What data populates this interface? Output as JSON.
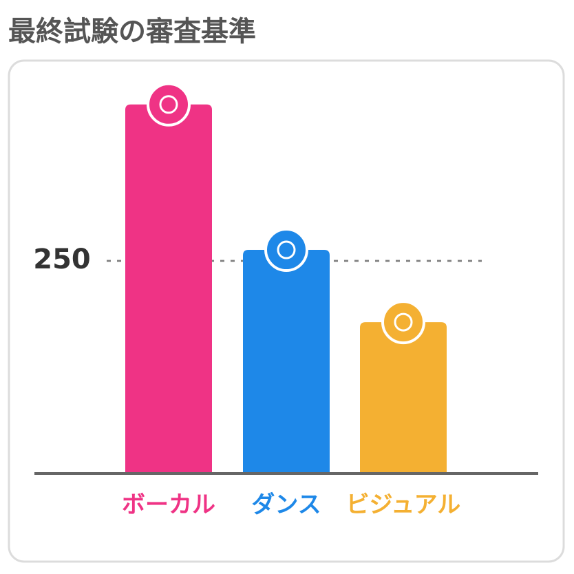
{
  "chart_data": {
    "type": "bar",
    "title": "最終試験の審査基準",
    "categories": [
      "ボーカル",
      "ダンス",
      "ビジュアル"
    ],
    "values": [
      434,
      263,
      178
    ],
    "colors": [
      "#ef3385",
      "#1e88e8",
      "#f4b032"
    ],
    "ylim": [
      0,
      450
    ],
    "yticks": [
      250
    ],
    "grid": true
  }
}
